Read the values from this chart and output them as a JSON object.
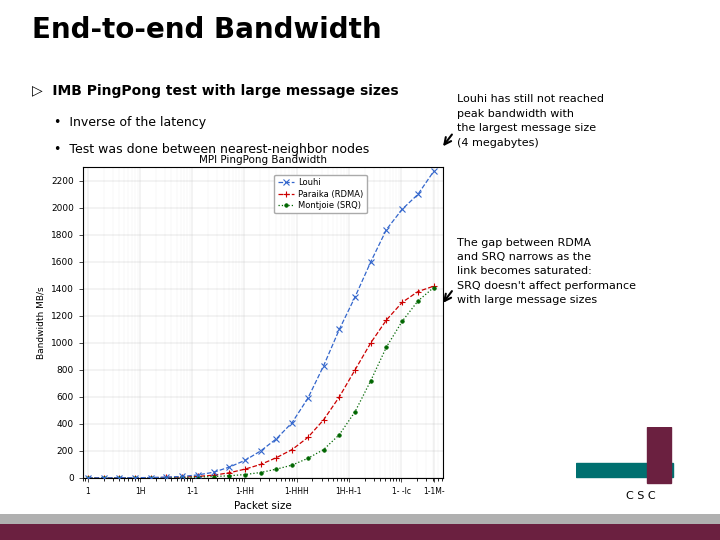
{
  "title": "End-to-end Bandwidth",
  "bullet_main": "IMB PingPong test with large message sizes",
  "bullet_sub": [
    "Inverse of the latency",
    "Test was done between nearest-neighbor nodes"
  ],
  "annotation_top": "Louhi has still not reached\npeak bandwidth with\nthe largest message size\n(4 megabytes)",
  "annotation_bottom": "The gap between RDMA\nand SRQ narrows as the\nlink becomes saturated:\nSRQ doesn't affect performance\nwith large message sizes",
  "plot_title": "MPI PingPong Bandwidth",
  "xlabel": "Packet size",
  "ylabel": "Bandwidth MB/s",
  "legend": [
    "Paraika (RDMA)",
    "Montjoie (SRQ)",
    "Louhi"
  ],
  "legend_colors": [
    "#cc0000",
    "#006600",
    "#3366cc"
  ],
  "bg_color": "#ffffff",
  "bottom_bar_color": "#6b2040",
  "bottom_bar2_color": "#b0b0b0",
  "csc_logo_color_dark": "#6b2040",
  "csc_logo_color_teal": "#007070",
  "x_data": [
    1,
    2,
    4,
    8,
    16,
    32,
    64,
    128,
    256,
    512,
    1024,
    2048,
    4096,
    8192,
    16384,
    32768,
    65536,
    131072,
    262144,
    524288,
    1048576,
    2097152,
    4194304
  ],
  "y_paraika": [
    0.2,
    0.4,
    0.7,
    1.2,
    2.0,
    3.5,
    6,
    11,
    20,
    38,
    65,
    100,
    150,
    210,
    300,
    430,
    600,
    800,
    1000,
    1170,
    1300,
    1380,
    1420
  ],
  "y_montjoie": [
    0.1,
    0.2,
    0.4,
    0.7,
    1.2,
    2.0,
    3.5,
    6,
    10,
    16,
    25,
    40,
    65,
    95,
    145,
    210,
    320,
    490,
    720,
    970,
    1160,
    1310,
    1410
  ],
  "y_louhi": [
    0.2,
    0.4,
    0.8,
    1.5,
    2.8,
    5.5,
    11,
    22,
    42,
    80,
    130,
    200,
    290,
    410,
    590,
    830,
    1100,
    1340,
    1600,
    1840,
    1990,
    2100,
    2270
  ],
  "ylim": [
    0,
    2300
  ],
  "ytick_vals": [
    0,
    200,
    400,
    600,
    800,
    1000,
    1200,
    1400,
    1600,
    1800,
    2000,
    2200
  ],
  "ytick_labels": [
    "0",
    "200",
    "400",
    "600",
    "800",
    "1000",
    "1200",
    "1400",
    "1600",
    "1800",
    "2000",
    "2200"
  ],
  "xtick_vals": [
    1,
    10,
    100,
    1000,
    10000,
    100000,
    1000000,
    4194304
  ],
  "xtick_labels": [
    "1",
    "1H",
    "1-1",
    "1-HH",
    "1-HHH",
    "1H-H-1",
    "1- -lc",
    "1-1M-"
  ]
}
